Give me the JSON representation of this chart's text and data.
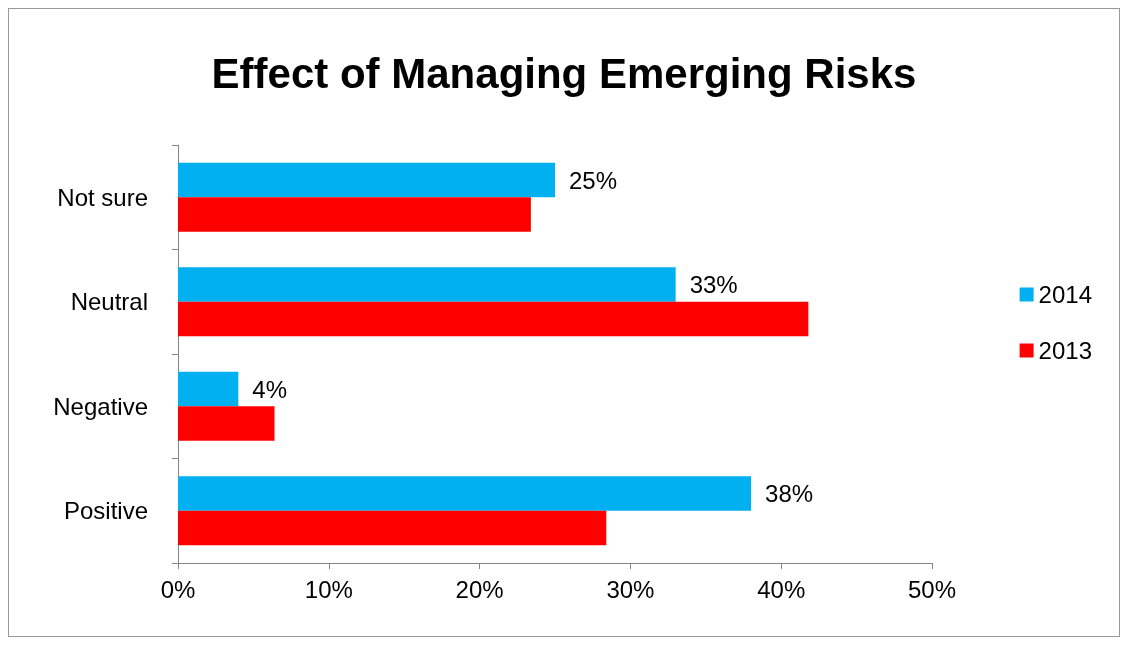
{
  "chart_data": {
    "type": "bar",
    "title": "Effect of Managing Emerging Risks",
    "orientation": "horizontal",
    "categories": [
      "Not sure",
      "Neutral",
      "Negative",
      "Positive"
    ],
    "series": [
      {
        "name": "2014",
        "color": "#00b0f0",
        "values": [
          25,
          33,
          4,
          38
        ],
        "value_labels": [
          "25%",
          "33%",
          "4%",
          "38%"
        ]
      },
      {
        "name": "2013",
        "color": "#ff0000",
        "values": [
          23.4,
          41.8,
          6.4,
          28.4
        ]
      }
    ],
    "xlim": [
      0,
      50
    ],
    "xticks": [
      {
        "value": 0,
        "label": "0%"
      },
      {
        "value": 10,
        "label": "10%"
      },
      {
        "value": 20,
        "label": "20%"
      },
      {
        "value": 30,
        "label": "30%"
      },
      {
        "value": 40,
        "label": "40%"
      },
      {
        "value": 50,
        "label": "50%"
      }
    ],
    "grid": false,
    "legend": "right"
  }
}
